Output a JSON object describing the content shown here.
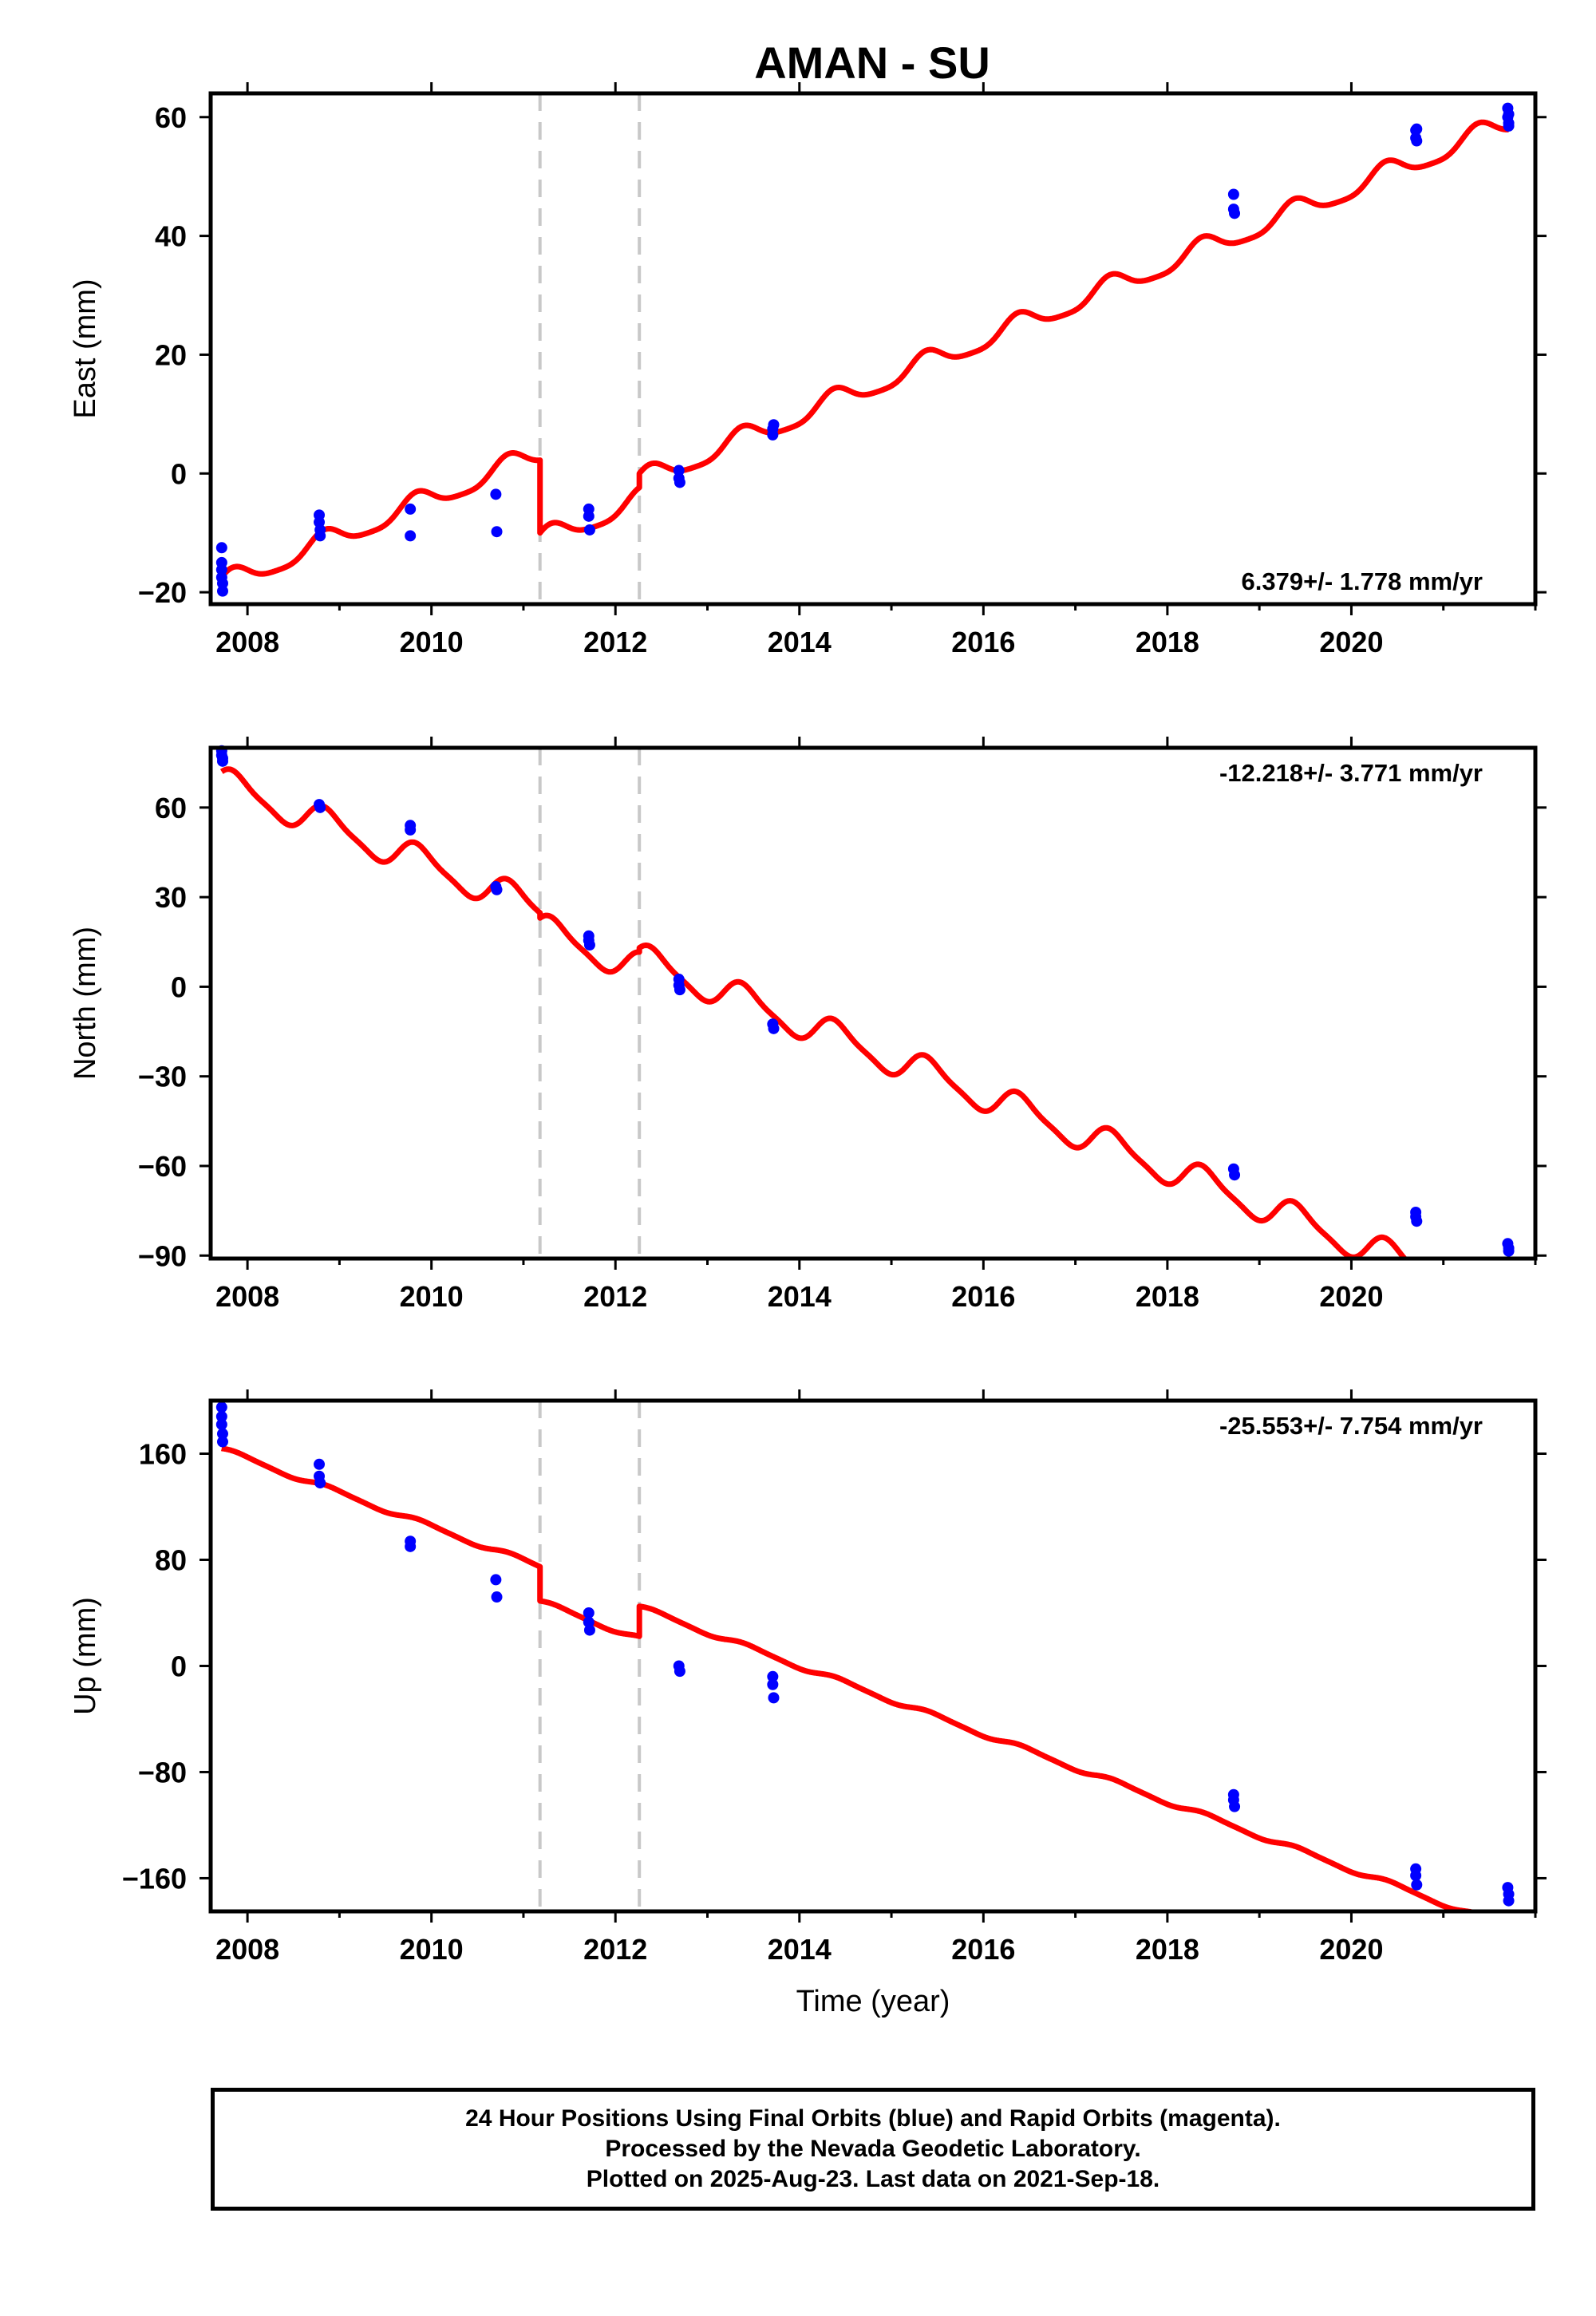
{
  "title": "AMAN - SU",
  "colors": {
    "model": "#ff0000",
    "final": "#0000ff",
    "offset_line": "#c8c8c8",
    "axes": "#000000"
  },
  "chart_data": [
    {
      "type": "scatter",
      "component": "east",
      "ylabel": "East (mm)",
      "xlabel": "",
      "xlim": [
        2007.6,
        2022.0
      ],
      "ylim": [
        -22,
        64
      ],
      "xticks": [
        2008,
        2010,
        2012,
        2014,
        2016,
        2018,
        2020
      ],
      "xtick_labels": [
        "2008",
        "2010",
        "2012",
        "2014",
        "2016",
        "2018",
        "2020"
      ],
      "yticks": [
        -20,
        0,
        20,
        40,
        60
      ],
      "ytick_labels": [
        "−20",
        "0",
        "20",
        "40",
        "60"
      ],
      "rate_label": "6.379+/- 1.778 mm/yr",
      "rate_position": "bottom-right",
      "offset_epochs": [
        2011.18,
        2012.26
      ],
      "final_orbits": {
        "x": [
          2007.72,
          2007.72,
          2007.72,
          2007.72,
          2007.73,
          2007.73,
          2008.78,
          2008.78,
          2008.79,
          2008.79,
          2009.77,
          2009.77,
          2010.7,
          2010.71,
          2011.71,
          2011.71,
          2011.72,
          2012.69,
          2012.69,
          2012.7,
          2013.71,
          2013.71,
          2013.72,
          2018.72,
          2018.72,
          2018.73,
          2020.7,
          2020.7,
          2020.71,
          2020.71,
          2021.7,
          2021.7,
          2021.71,
          2021.71,
          2021.71
        ],
        "y": [
          -12.5,
          -15,
          -16.2,
          -17.5,
          -18.5,
          -19.8,
          -7,
          -8.2,
          -9.5,
          -10.5,
          -6,
          -10.5,
          -3.5,
          -9.8,
          -6,
          -7.2,
          -9.5,
          0.5,
          -0.8,
          -1.5,
          6.5,
          7.5,
          8.2,
          47,
          44.5,
          43.8,
          56.5,
          57.8,
          56,
          58,
          61.5,
          60,
          59,
          58.5,
          60.5
        ]
      },
      "model": {
        "rate": 6.379,
        "amp_annual": 1.8,
        "phase_annual": 0.8,
        "amp_semiannual": 0.4,
        "phase_semiannual": 0.2,
        "segments": [
          {
            "start": 2007.72,
            "end": 2011.18,
            "y_at_start": -17.4
          },
          {
            "start": 2011.18,
            "end": 2012.26,
            "y_at_start": -10.0
          },
          {
            "start": 2012.26,
            "end": 2021.71,
            "y_at_start": 0.0
          }
        ]
      }
    },
    {
      "type": "scatter",
      "component": "north",
      "ylabel": "North (mm)",
      "xlabel": "",
      "xlim": [
        2007.6,
        2022.0
      ],
      "ylim": [
        -91,
        80
      ],
      "xticks": [
        2008,
        2010,
        2012,
        2014,
        2016,
        2018,
        2020
      ],
      "xtick_labels": [
        "2008",
        "2010",
        "2012",
        "2014",
        "2016",
        "2018",
        "2020"
      ],
      "yticks": [
        -90,
        -60,
        -30,
        0,
        30,
        60
      ],
      "ytick_labels": [
        "−90",
        "−60",
        "−30",
        "0",
        "30",
        "60"
      ],
      "rate_label": "-12.218+/- 3.771 mm/yr",
      "rate_position": "top-right",
      "offset_epochs": [
        2011.18,
        2012.26
      ],
      "final_orbits": {
        "x": [
          2007.72,
          2007.72,
          2007.73,
          2007.73,
          2008.78,
          2008.79,
          2009.77,
          2009.77,
          2010.7,
          2010.71,
          2011.71,
          2011.71,
          2011.72,
          2012.69,
          2012.69,
          2012.7,
          2013.71,
          2013.72,
          2018.72,
          2018.73,
          2020.7,
          2020.7,
          2020.71,
          2021.7,
          2021.71,
          2021.71
        ],
        "y": [
          79,
          77.5,
          76.5,
          75.5,
          61,
          60,
          54,
          52.5,
          33.5,
          32.5,
          17,
          15.5,
          14,
          2.5,
          0.5,
          -1,
          -12.5,
          -14,
          -61,
          -63,
          -75.5,
          -77,
          -78.5,
          -86,
          -87.5,
          -88.5
        ]
      },
      "model": {
        "rate": -12.218,
        "amp_annual": 5,
        "phase_annual": 0.6,
        "amp_semiannual": 1.2,
        "phase_semiannual": 0.9,
        "segments": [
          {
            "start": 2007.72,
            "end": 2011.18,
            "y_at_start": 72.0
          },
          {
            "start": 2011.18,
            "end": 2012.26,
            "y_at_start": 23.0
          },
          {
            "start": 2012.26,
            "end": 2021.71,
            "y_at_start": 13.0
          }
        ]
      }
    },
    {
      "type": "scatter",
      "component": "up",
      "ylabel": "Up (mm)",
      "xlabel": "Time (year)",
      "xlim": [
        2007.6,
        2022.0
      ],
      "ylim": [
        -185,
        200
      ],
      "xticks": [
        2008,
        2010,
        2012,
        2014,
        2016,
        2018,
        2020
      ],
      "xtick_labels": [
        "2008",
        "2010",
        "2012",
        "2014",
        "2016",
        "2018",
        "2020"
      ],
      "yticks": [
        -160,
        -80,
        0,
        80,
        160
      ],
      "ytick_labels": [
        "−160",
        "−80",
        "0",
        "80",
        "160"
      ],
      "rate_label": "-25.553+/- 7.754 mm/yr",
      "rate_position": "top-right",
      "offset_epochs": [
        2011.18,
        2012.26
      ],
      "final_orbits": {
        "x": [
          2007.72,
          2007.72,
          2007.72,
          2007.73,
          2007.73,
          2008.78,
          2008.78,
          2008.79,
          2009.77,
          2009.77,
          2010.7,
          2010.71,
          2011.71,
          2011.71,
          2011.72,
          2012.69,
          2012.7,
          2013.71,
          2013.71,
          2013.72,
          2018.72,
          2018.72,
          2018.73,
          2020.7,
          2020.7,
          2020.71,
          2021.7,
          2021.71,
          2021.71
        ],
        "y": [
          195,
          188,
          182,
          175,
          169,
          152,
          143,
          138,
          94,
          90,
          65,
          52,
          40,
          33,
          27,
          0,
          -4,
          -8,
          -14,
          -24,
          -97,
          -101,
          -106,
          -153,
          -158,
          -165,
          -167,
          -172,
          -177
        ]
      },
      "model": {
        "rate": -25.553,
        "amp_annual": 1.8,
        "phase_annual": 0.3,
        "amp_semiannual": 0.4,
        "phase_semiannual": 0.5,
        "segments": [
          {
            "start": 2007.72,
            "end": 2011.18,
            "y_at_start": 164.0
          },
          {
            "start": 2011.18,
            "end": 2012.26,
            "y_at_start": 49.0
          },
          {
            "start": 2012.26,
            "end": 2021.71,
            "y_at_start": 45.0
          }
        ]
      }
    }
  ],
  "caption": {
    "line1": "24 Hour Positions Using Final Orbits (blue) and Rapid Orbits (magenta).",
    "line2": "Processed by the Nevada Geodetic Laboratory.",
    "line3": "Plotted on 2025-Aug-23. Last data on 2021-Sep-18."
  }
}
